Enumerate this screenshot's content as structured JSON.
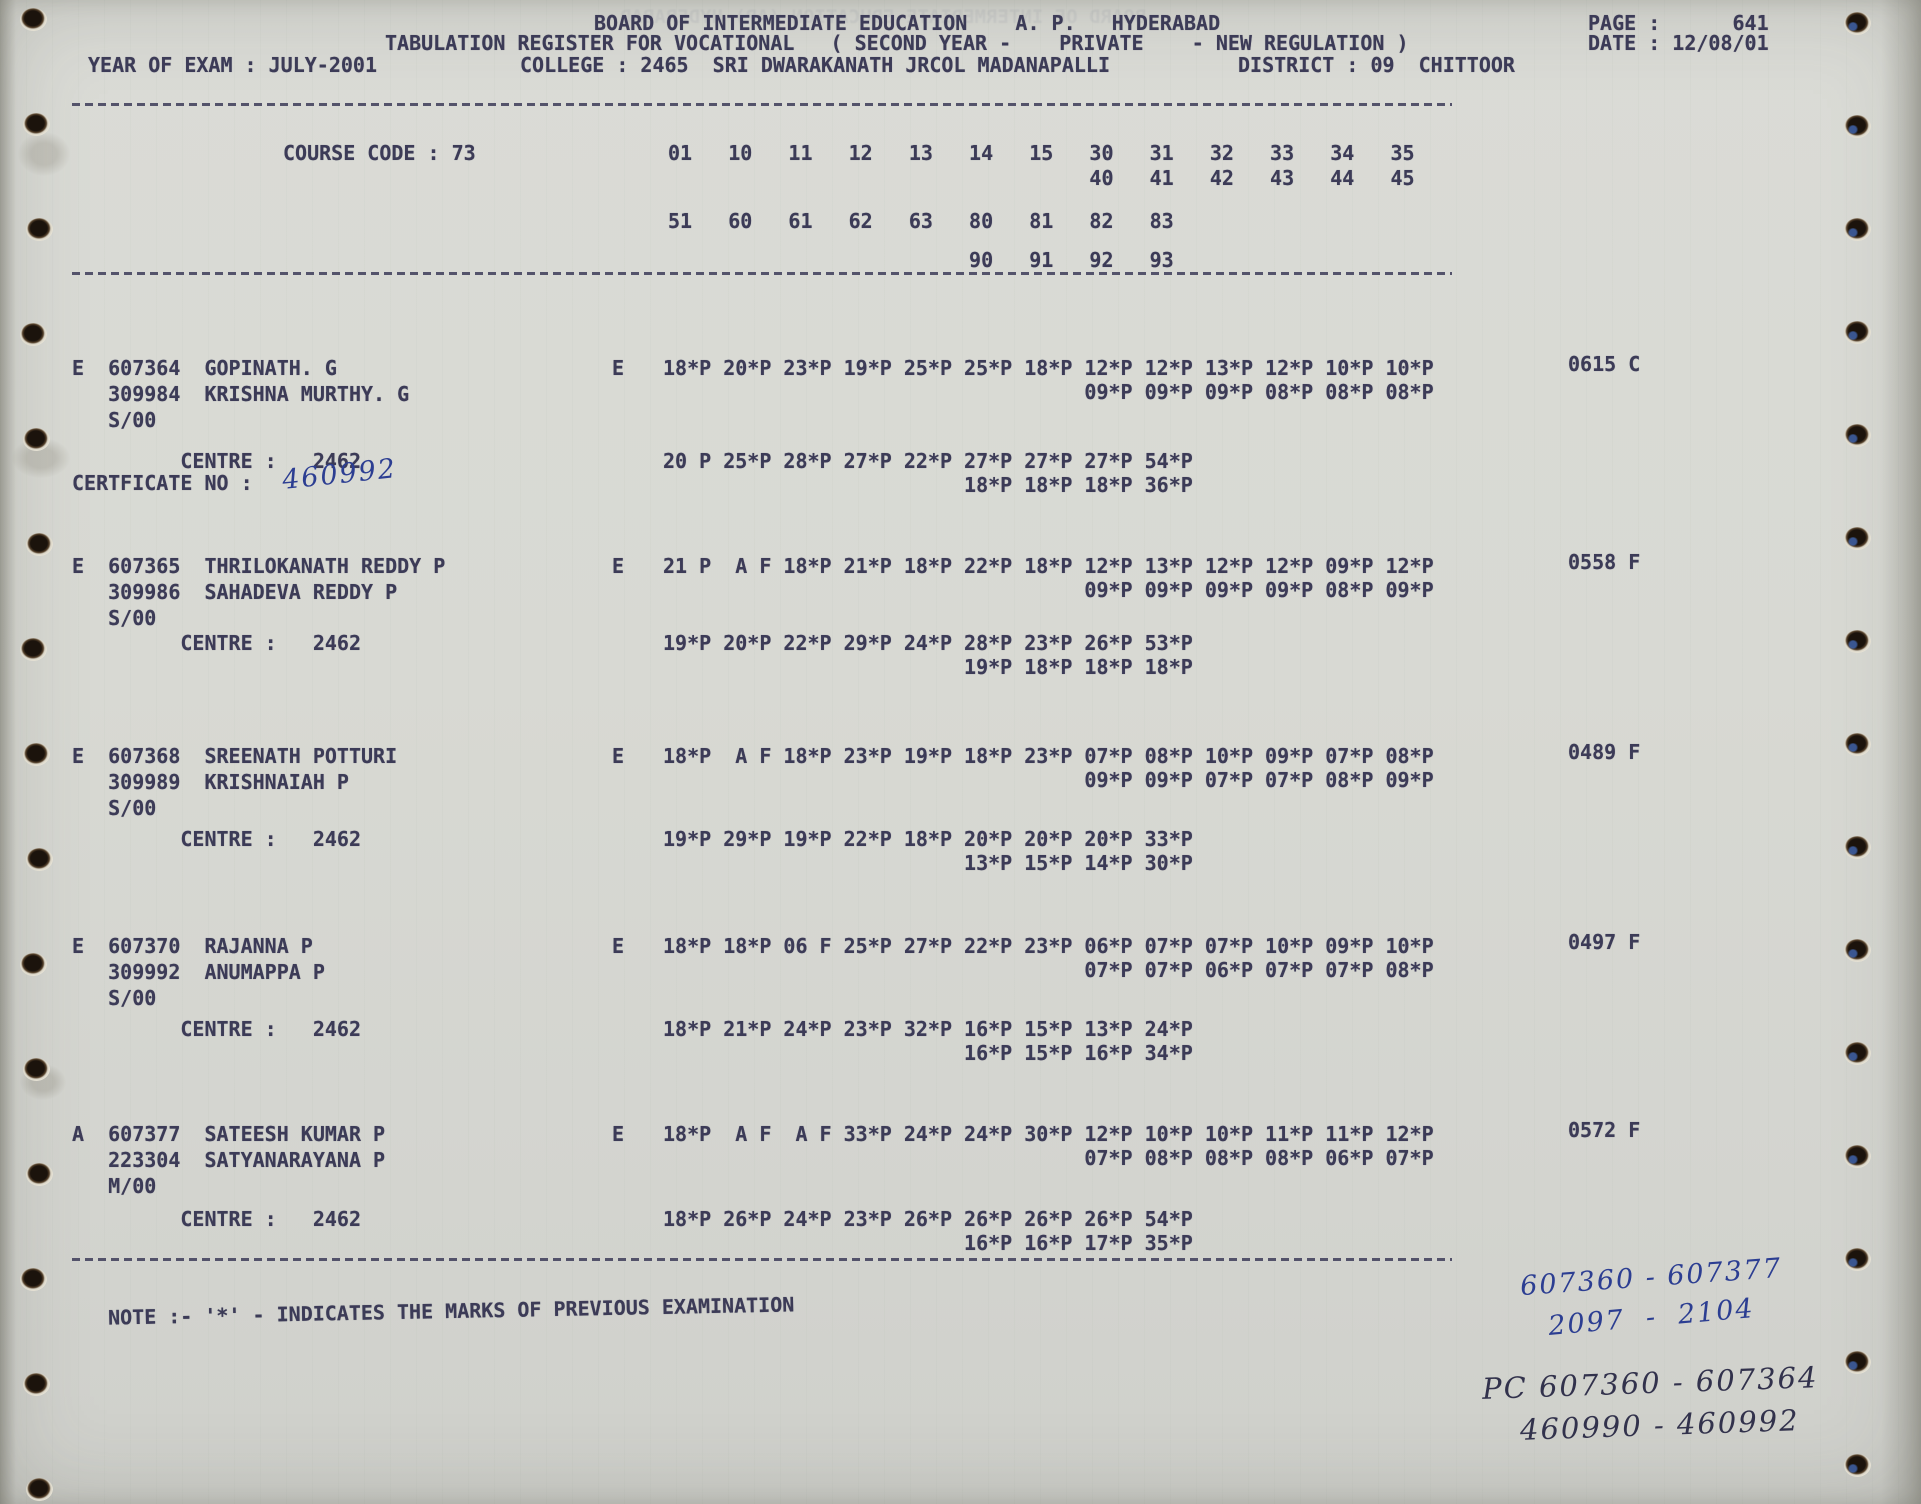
{
  "colors": {
    "paper": "#d8d9d3",
    "ink": "#3c3b57",
    "pen_blue": "#2c3e92",
    "pen_dark": "#32324c"
  },
  "header": {
    "title": "BOARD OF INTERMEDIATE EDUCATION    A. P.   HYDERABAD",
    "page_line": "PAGE :      641",
    "subtitle": "TABULATION REGISTER FOR VOCATIONAL   ( SECOND YEAR -    PRIVATE    - NEW REGULATION )",
    "date_line": "DATE : 12/08/01",
    "year_of_exam": "YEAR OF EXAM : JULY-2001",
    "college": "COLLEGE : 2465  SRI DWARAKANATH JRCOL MADANAPALLI",
    "district": "DISTRICT : 09  CHITTOOR",
    "ghost_showthrough": "BOARD OF INTERMEDIATE EDUCATION (AP) HYDERABAD"
  },
  "course": {
    "label": "COURSE CODE : 73",
    "cols_row1": "01   10   11   12   13   14   15   30   31   32   33   34   35",
    "cols_row1b": "                                   40   41   42   43   44   45",
    "cols_row2": "51   60   61   62   63   80   81   82   83",
    "cols_row2b": "                         90   91   92   93"
  },
  "records": [
    {
      "line1": "E  607364  GOPINATH. G",
      "line2": "   309984  KRISHNA MURTHY. G",
      "line3": "   S/00",
      "medium": "E",
      "marks_row1": "18*P 20*P 23*P 19*P 25*P 25*P 18*P 12*P 12*P 13*P 12*P 10*P 10*P",
      "marks_row2": "                                   09*P 09*P 09*P 08*P 08*P 08*P",
      "total": "0615 C",
      "centre_row": "         CENTRE :   2462",
      "certificate_label": "CERTFICATE NO :",
      "certificate_no_handwritten": "460992",
      "centre_marks_row1": "20 P 25*P 28*P 27*P 22*P 27*P 27*P 27*P 54*P",
      "centre_marks_row2": "                         18*P 18*P 18*P 36*P"
    },
    {
      "line1": "E  607365  THRILOKANATH REDDY P",
      "line2": "   309986  SAHADEVA REDDY P",
      "line3": "   S/00",
      "medium": "E",
      "marks_row1": "21 P  A F 18*P 21*P 18*P 22*P 18*P 12*P 13*P 12*P 12*P 09*P 12*P",
      "marks_row2": "                                   09*P 09*P 09*P 09*P 08*P 09*P",
      "total": "0558 F",
      "centre_row": "         CENTRE :   2462",
      "centre_marks_row1": "19*P 20*P 22*P 29*P 24*P 28*P 23*P 26*P 53*P",
      "centre_marks_row2": "                         19*P 18*P 18*P 18*P"
    },
    {
      "line1": "E  607368  SREENATH POTTURI",
      "line2": "   309989  KRISHNAIAH P",
      "line3": "   S/00",
      "medium": "E",
      "marks_row1": "18*P  A F 18*P 23*P 19*P 18*P 23*P 07*P 08*P 10*P 09*P 07*P 08*P",
      "marks_row2": "                                   09*P 09*P 07*P 07*P 08*P 09*P",
      "total": "0489 F",
      "centre_row": "         CENTRE :   2462",
      "centre_marks_row1": "19*P 29*P 19*P 22*P 18*P 20*P 20*P 20*P 33*P",
      "centre_marks_row2": "                         13*P 15*P 14*P 30*P"
    },
    {
      "line1": "E  607370  RAJANNA P",
      "line2": "   309992  ANUMAPPA P",
      "line3": "   S/00",
      "medium": "E",
      "marks_row1": "18*P 18*P 06 F 25*P 27*P 22*P 23*P 06*P 07*P 07*P 10*P 09*P 10*P",
      "marks_row2": "                                   07*P 07*P 06*P 07*P 07*P 08*P",
      "total": "0497 F",
      "centre_row": "         CENTRE :   2462",
      "centre_marks_row1": "18*P 21*P 24*P 23*P 32*P 16*P 15*P 13*P 24*P",
      "centre_marks_row2": "                         16*P 15*P 16*P 34*P"
    },
    {
      "line1": "A  607377  SATEESH KUMAR P",
      "line2": "   223304  SATYANARAYANA P",
      "line3": "   M/00",
      "medium": "E",
      "marks_row1": "18*P  A F  A F 33*P 24*P 24*P 30*P 12*P 10*P 10*P 11*P 11*P 12*P",
      "marks_row2": "                                   07*P 08*P 08*P 08*P 06*P 07*P",
      "total": "0572 F",
      "centre_row": "         CENTRE :   2462",
      "centre_marks_row1": "18*P 26*P 24*P 23*P 26*P 26*P 26*P 26*P 54*P",
      "centre_marks_row2": "                         16*P 16*P 17*P 35*P"
    }
  ],
  "note": "NOTE :- '*' - INDICATES THE MARKS OF PREVIOUS EXAMINATION",
  "handwritten": {
    "regno_range": "607360 - 607377",
    "serial_range": "2097  -  2104",
    "pc_regno_range": "PC 607360 - 607364",
    "pc_cert_range": "460990 - 460992"
  }
}
